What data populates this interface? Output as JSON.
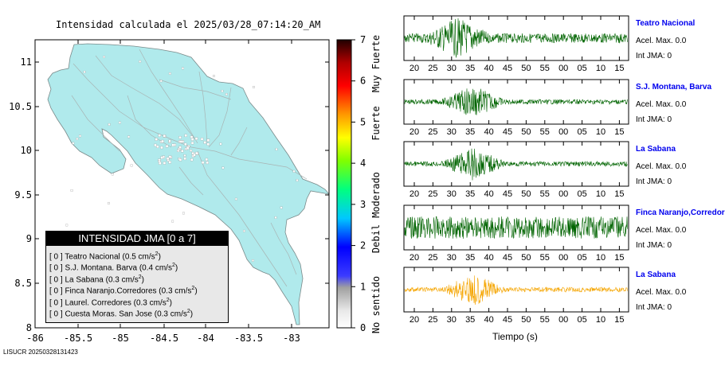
{
  "map": {
    "title": "Intensidad calculada el 2025/03/28_07:14:20_AM",
    "lon_ticks": [
      "-86",
      "-85.5",
      "-85",
      "-84.5",
      "-84",
      "-83.5",
      "-83"
    ],
    "lat_ticks": [
      "11",
      "10.5",
      "10",
      "9.5",
      "9",
      "8.5",
      "8"
    ],
    "fill_color": "#b0eaec",
    "footer_id": "LISUCR 20250328131423"
  },
  "legend": {
    "header": "INTENSIDAD JMA [0 a 7]",
    "unit": "cm/s",
    "unit_exp": "2",
    "items": [
      {
        "value": "[ 0 ]",
        "name": "Teatro Nacional",
        "acc": "(0.5"
      },
      {
        "value": "[ 0 ]",
        "name": "S.J. Montana. Barva",
        "acc": "(0.4"
      },
      {
        "value": "[ 0 ]",
        "name": "La Sabana",
        "acc": "(0.3"
      },
      {
        "value": "[ 0 ]",
        "name": "Finca Naranjo.Corredores",
        "acc": "(0.3"
      },
      {
        "value": "[ 0 ]",
        "name": "Laurel. Corredores",
        "acc": "(0.3"
      },
      {
        "value": "[ 0 ]",
        "name": "Cuesta Moras. San Jose",
        "acc": "(0.3"
      }
    ]
  },
  "scale": {
    "numbers": [
      "7",
      "6",
      "5",
      "4",
      "3",
      "2",
      "1",
      "0"
    ],
    "words": [
      "Muy Fuerte",
      "Fuerte",
      "Moderado",
      "Debil",
      "No sentido"
    ]
  },
  "waveforms": {
    "time_ticks": [
      "20",
      "25",
      "30",
      "35",
      "40",
      "45",
      "50",
      "55",
      "00",
      "05",
      "10",
      "15"
    ],
    "xlabel": "Tiempo (s)",
    "stations": [
      {
        "name": "Teatro Nacional",
        "acel": "Acel. Max. 0.0",
        "jma": "Int JMA: 0",
        "color": "#006400"
      },
      {
        "name": "S.J. Montana, Barva",
        "acel": "Acel. Max. 0.0",
        "jma": "Int JMA: 0",
        "color": "#006400"
      },
      {
        "name": "La Sabana",
        "acel": "Acel. Max. 0.0",
        "jma": "Int JMA: 0",
        "color": "#006400"
      },
      {
        "name": "Finca Naranjo,Corredores",
        "acel": "Acel. Max. 0.0",
        "jma": "Int JMA: 0",
        "color": "#006400"
      },
      {
        "name": "La Sabana",
        "acel": "Acel. Max. 0.0",
        "jma": "Int JMA: 0",
        "color": "#f5a500"
      }
    ]
  }
}
